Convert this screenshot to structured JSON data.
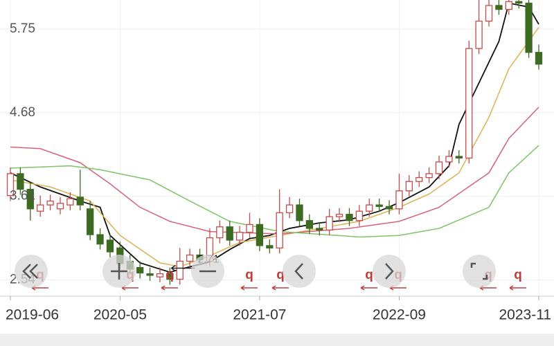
{
  "chart_data": {
    "type": "candlestick",
    "categories": [
      "2019-06",
      null,
      null,
      null,
      null,
      null,
      null,
      null,
      null,
      null,
      null,
      "2020-05",
      null,
      null,
      null,
      null,
      null,
      null,
      null,
      null,
      null,
      null,
      null,
      null,
      null,
      "2021-07",
      null,
      null,
      null,
      null,
      null,
      null,
      null,
      null,
      null,
      null,
      null,
      null,
      null,
      "2022-09",
      null,
      null,
      null,
      null,
      null,
      null,
      null,
      null,
      null,
      null,
      null,
      null,
      null,
      "2023-11"
    ],
    "open": [
      3.62,
      3.9,
      3.7,
      3.42,
      3.5,
      3.45,
      3.5,
      3.6,
      3.45,
      3.12,
      3.05,
      2.95,
      2.78,
      2.7,
      2.62,
      2.58,
      2.62,
      2.55,
      2.78,
      2.86,
      2.78,
      3.08,
      3.22,
      3.05,
      3.15,
      3.25,
      2.98,
      2.95,
      3.4,
      3.5,
      3.3,
      3.2,
      3.18,
      3.35,
      3.38,
      3.3,
      3.42,
      3.5,
      3.48,
      3.45,
      3.68,
      3.8,
      3.85,
      3.9,
      4.05,
      4.12,
      4.1,
      5.5,
      5.85,
      6.05,
      6.0,
      6.1,
      6.08,
      5.45
    ],
    "high": [
      3.98,
      3.98,
      3.78,
      3.62,
      3.63,
      3.6,
      3.66,
      3.95,
      3.55,
      3.2,
      3.13,
      3.03,
      2.86,
      2.78,
      2.7,
      2.7,
      2.7,
      2.95,
      2.94,
      2.94,
      3.2,
      3.3,
      3.3,
      3.23,
      3.4,
      3.33,
      3.06,
      3.7,
      3.6,
      3.58,
      3.38,
      3.28,
      3.45,
      3.46,
      3.46,
      3.5,
      3.58,
      3.58,
      3.56,
      3.9,
      3.88,
      3.93,
      3.98,
      4.13,
      4.2,
      4.2,
      5.6,
      6.12,
      6.12,
      6.12,
      6.12,
      6.12,
      6.12,
      5.55
    ],
    "low": [
      3.55,
      3.63,
      3.3,
      3.35,
      3.43,
      3.38,
      3.43,
      3.43,
      3.05,
      2.93,
      2.83,
      2.68,
      2.61,
      2.56,
      2.53,
      2.51,
      2.48,
      2.48,
      2.71,
      2.73,
      2.71,
      3.01,
      2.98,
      2.98,
      3.08,
      2.91,
      2.88,
      2.88,
      3.33,
      3.23,
      3.13,
      3.11,
      3.11,
      3.28,
      3.23,
      3.23,
      3.35,
      3.41,
      3.38,
      3.38,
      3.61,
      3.73,
      3.78,
      3.83,
      3.98,
      4.03,
      4.03,
      5.43,
      5.78,
      5.93,
      5.93,
      6.01,
      5.38,
      5.23
    ],
    "close": [
      3.9,
      3.7,
      3.45,
      3.5,
      3.55,
      3.52,
      3.58,
      3.5,
      3.12,
      3.0,
      2.9,
      2.75,
      2.68,
      2.63,
      2.6,
      2.62,
      2.55,
      2.78,
      2.86,
      2.8,
      3.08,
      3.22,
      3.05,
      3.15,
      3.25,
      2.98,
      2.95,
      3.4,
      3.5,
      3.3,
      3.2,
      3.18,
      3.35,
      3.38,
      3.3,
      3.42,
      3.5,
      3.48,
      3.45,
      3.68,
      3.8,
      3.85,
      3.9,
      4.05,
      4.12,
      4.1,
      5.5,
      5.85,
      6.05,
      6.0,
      6.1,
      6.08,
      5.45,
      5.3
    ],
    "up_color": "#c94a4a",
    "down_color": "#3d6b22",
    "lines": [
      {
        "color": "#111111",
        "x": [
          0,
          3,
          7,
          9,
          10,
          13,
          16,
          18,
          20,
          22,
          24,
          26,
          28,
          31,
          34,
          37,
          39,
          42,
          44,
          45,
          49,
          50,
          52,
          53
        ],
        "values": [
          3.91,
          3.73,
          3.55,
          3.47,
          3.11,
          2.76,
          2.64,
          2.71,
          2.77,
          2.93,
          3.07,
          3.11,
          3.2,
          3.27,
          3.31,
          3.42,
          3.53,
          3.73,
          4.0,
          4.53,
          5.59,
          6.08,
          6.03,
          5.81
        ]
      },
      {
        "color": "#e0b050",
        "x": [
          0,
          4,
          8,
          11,
          15,
          17,
          20,
          23,
          27,
          31,
          35,
          39,
          42,
          45,
          48,
          50,
          53
        ],
        "values": [
          3.82,
          3.73,
          3.55,
          3.11,
          2.76,
          2.71,
          2.85,
          3.02,
          3.11,
          3.2,
          3.29,
          3.47,
          3.64,
          3.91,
          4.62,
          5.24,
          5.77
        ]
      },
      {
        "color": "#d9607a",
        "x": [
          0,
          3,
          7,
          10,
          13,
          16,
          20,
          27,
          34,
          39,
          43,
          48,
          50,
          53
        ],
        "values": [
          4.24,
          4.22,
          4.04,
          3.77,
          3.47,
          3.29,
          3.16,
          3.13,
          3.2,
          3.29,
          3.47,
          3.91,
          4.35,
          4.75
        ]
      },
      {
        "color": "#7cc466",
        "x": [
          0,
          6,
          9,
          14,
          18,
          22,
          27,
          35,
          39,
          43,
          48,
          50,
          53
        ],
        "values": [
          3.97,
          4.0,
          3.95,
          3.82,
          3.55,
          3.29,
          3.16,
          3.09,
          3.11,
          3.2,
          3.47,
          3.91,
          4.26
        ]
      }
    ],
    "ylim": [
      2.36,
      6.12
    ],
    "yticks": [
      5.75,
      4.68,
      3.61,
      2.54
    ],
    "annotation": {
      "label": "2.71",
      "value": 2.71,
      "index": 16
    },
    "marker_label": "q",
    "grid": true
  }
}
